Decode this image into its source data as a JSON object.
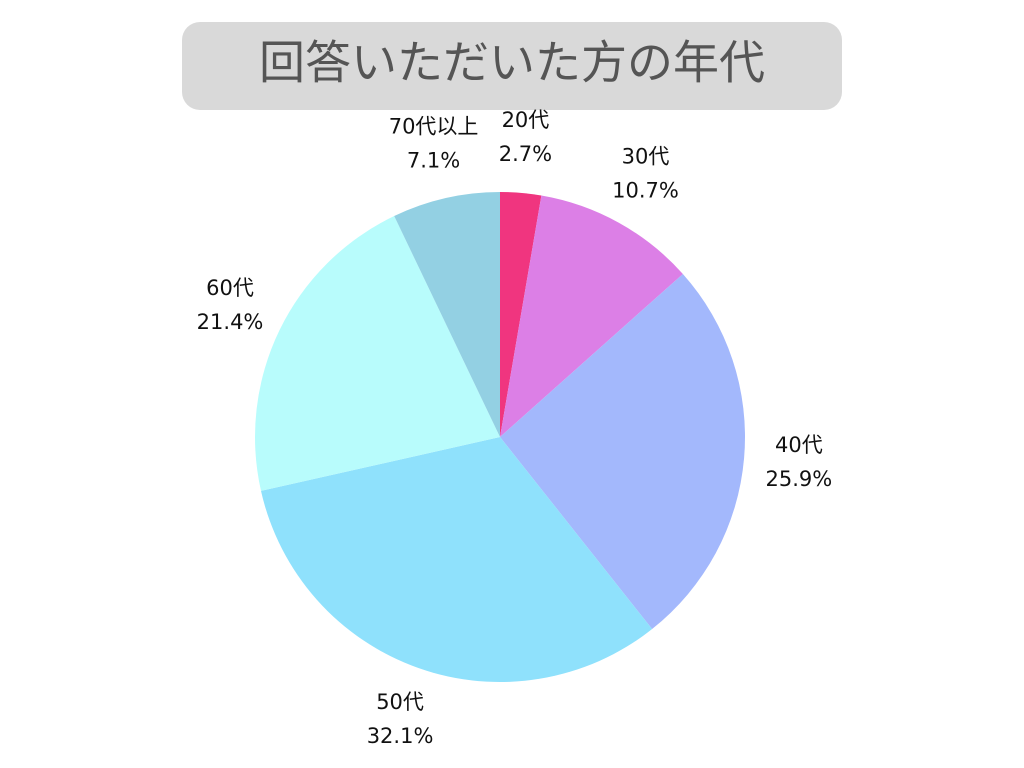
{
  "chart_data": {
    "type": "pie",
    "title": "回答いただいた方の年代",
    "categories": [
      "20代",
      "30代",
      "40代",
      "50代",
      "60代",
      "70代以上"
    ],
    "values": [
      2.7,
      10.7,
      25.9,
      32.1,
      21.4,
      7.1
    ],
    "value_labels": [
      "2.7%",
      "10.7%",
      "25.9%",
      "32.1%",
      "21.4%",
      "7.1%"
    ],
    "colors": [
      "#f0357f",
      "#dc7fe6",
      "#a3b8fc",
      "#8fe1fc",
      "#b8fcfc",
      "#93d0e3"
    ]
  }
}
